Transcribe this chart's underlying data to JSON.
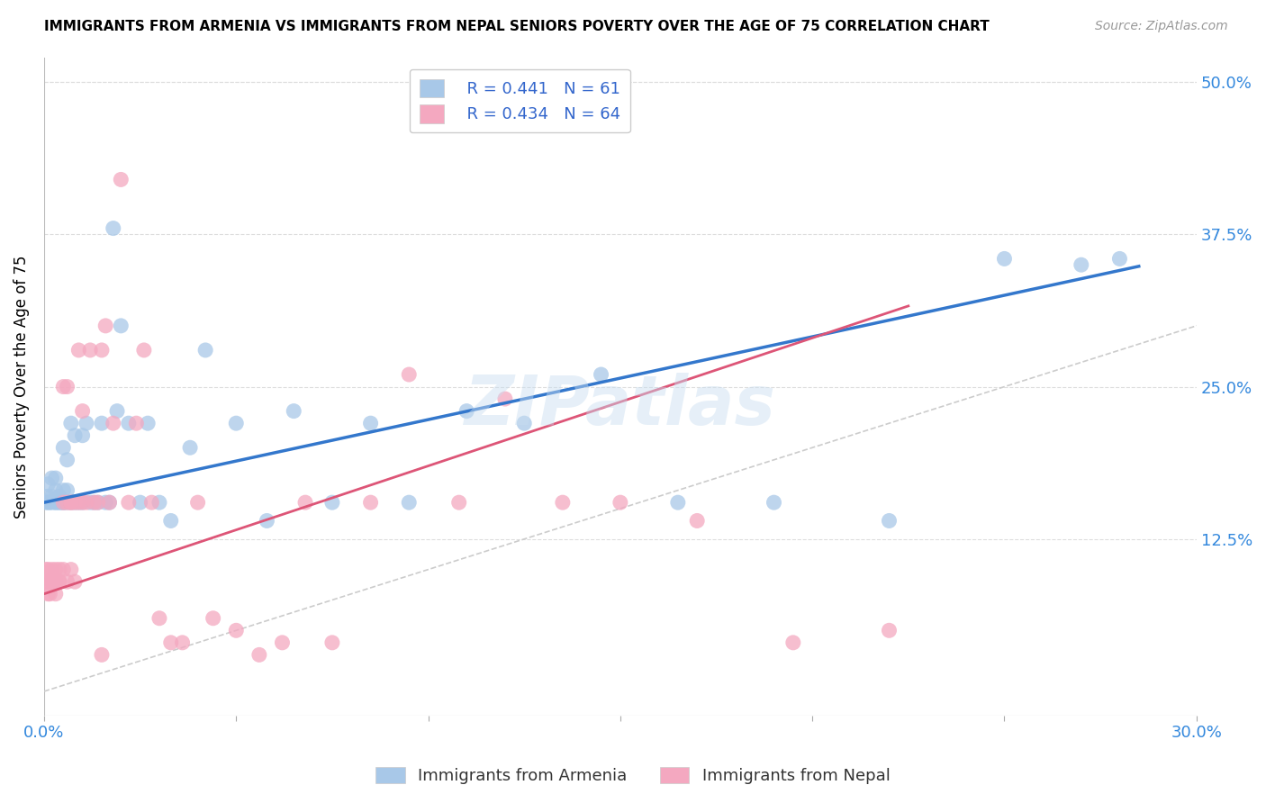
{
  "title": "IMMIGRANTS FROM ARMENIA VS IMMIGRANTS FROM NEPAL SENIORS POVERTY OVER THE AGE OF 75 CORRELATION CHART",
  "source": "Source: ZipAtlas.com",
  "ylabel": "Seniors Poverty Over the Age of 75",
  "xlim": [
    0.0,
    0.3
  ],
  "ylim": [
    -0.02,
    0.52
  ],
  "ytick_positions": [
    0.125,
    0.25,
    0.375,
    0.5
  ],
  "ytick_labels": [
    "12.5%",
    "25.0%",
    "37.5%",
    "50.0%"
  ],
  "R_armenia": 0.441,
  "N_armenia": 61,
  "R_nepal": 0.434,
  "N_nepal": 64,
  "color_armenia": "#a8c8e8",
  "color_nepal": "#f4a8c0",
  "line_color_armenia": "#3377cc",
  "line_color_nepal": "#dd5577",
  "diagonal_color": "#cccccc",
  "legend_label_armenia": "Immigrants from Armenia",
  "legend_label_nepal": "Immigrants from Nepal",
  "watermark": "ZIPatlas",
  "armenia_x": [
    0.0005,
    0.0008,
    0.001,
    0.001,
    0.0015,
    0.002,
    0.002,
    0.002,
    0.003,
    0.003,
    0.003,
    0.003,
    0.004,
    0.004,
    0.004,
    0.005,
    0.005,
    0.005,
    0.005,
    0.006,
    0.006,
    0.006,
    0.007,
    0.007,
    0.008,
    0.008,
    0.009,
    0.01,
    0.01,
    0.011,
    0.012,
    0.013,
    0.014,
    0.015,
    0.016,
    0.017,
    0.018,
    0.019,
    0.02,
    0.022,
    0.025,
    0.027,
    0.03,
    0.033,
    0.038,
    0.042,
    0.05,
    0.058,
    0.065,
    0.075,
    0.085,
    0.095,
    0.11,
    0.125,
    0.145,
    0.165,
    0.19,
    0.22,
    0.25,
    0.27,
    0.28
  ],
  "armenia_y": [
    0.155,
    0.16,
    0.155,
    0.17,
    0.155,
    0.155,
    0.16,
    0.175,
    0.155,
    0.155,
    0.165,
    0.175,
    0.155,
    0.16,
    0.155,
    0.155,
    0.155,
    0.165,
    0.2,
    0.155,
    0.165,
    0.19,
    0.22,
    0.155,
    0.155,
    0.21,
    0.155,
    0.155,
    0.21,
    0.22,
    0.155,
    0.155,
    0.155,
    0.22,
    0.155,
    0.155,
    0.38,
    0.23,
    0.3,
    0.22,
    0.155,
    0.22,
    0.155,
    0.14,
    0.2,
    0.28,
    0.22,
    0.14,
    0.23,
    0.155,
    0.22,
    0.155,
    0.23,
    0.22,
    0.26,
    0.155,
    0.155,
    0.14,
    0.355,
    0.35,
    0.355
  ],
  "nepal_x": [
    0.0005,
    0.0005,
    0.001,
    0.001,
    0.001,
    0.0015,
    0.002,
    0.002,
    0.002,
    0.003,
    0.003,
    0.003,
    0.003,
    0.004,
    0.004,
    0.004,
    0.005,
    0.005,
    0.005,
    0.006,
    0.006,
    0.006,
    0.007,
    0.007,
    0.007,
    0.008,
    0.008,
    0.009,
    0.009,
    0.01,
    0.01,
    0.011,
    0.012,
    0.013,
    0.014,
    0.015,
    0.015,
    0.016,
    0.017,
    0.018,
    0.02,
    0.022,
    0.024,
    0.026,
    0.028,
    0.03,
    0.033,
    0.036,
    0.04,
    0.044,
    0.05,
    0.056,
    0.062,
    0.068,
    0.075,
    0.085,
    0.095,
    0.108,
    0.12,
    0.135,
    0.15,
    0.17,
    0.195,
    0.22
  ],
  "nepal_y": [
    0.09,
    0.1,
    0.08,
    0.09,
    0.1,
    0.08,
    0.09,
    0.1,
    0.09,
    0.09,
    0.1,
    0.09,
    0.08,
    0.09,
    0.1,
    0.09,
    0.25,
    0.155,
    0.1,
    0.25,
    0.155,
    0.09,
    0.155,
    0.155,
    0.1,
    0.155,
    0.09,
    0.28,
    0.155,
    0.155,
    0.23,
    0.155,
    0.28,
    0.155,
    0.155,
    0.03,
    0.28,
    0.3,
    0.155,
    0.22,
    0.42,
    0.155,
    0.22,
    0.28,
    0.155,
    0.06,
    0.04,
    0.04,
    0.155,
    0.06,
    0.05,
    0.03,
    0.04,
    0.155,
    0.04,
    0.155,
    0.26,
    0.155,
    0.24,
    0.155,
    0.155,
    0.14,
    0.04,
    0.05
  ]
}
